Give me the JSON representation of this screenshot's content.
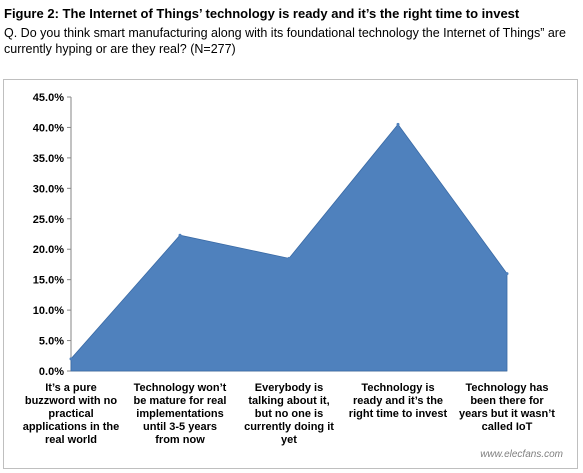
{
  "header": {
    "figure_title": "Figure 2: The Internet of Things’ technology is ready and it’s the right time to invest",
    "question": "Q. Do you think smart manufacturing along with its foundational technology the Internet of Things” are currently hyping or are they real? (N=277)"
  },
  "chart_data": {
    "type": "area",
    "title": "",
    "xlabel": "",
    "ylabel": "",
    "ylim": [
      0,
      45
    ],
    "yticks": [
      "0.0%",
      "5.0%",
      "10.0%",
      "15.0%",
      "20.0%",
      "25.0%",
      "30.0%",
      "35.0%",
      "40.0%",
      "45.0%"
    ],
    "grid": false,
    "legend": "none",
    "color": "#4f81bd",
    "categories": [
      "It’s a pure buzzword with no practical applications in the real world",
      "Technology won’t be mature for real implementations until 3-5 years from now",
      "Everybody is talking about it, but no one is currently doing it yet",
      "Technology is ready and it’s the right time to invest",
      "Technology has been there for years but it wasn’t called IoT"
    ],
    "category_lines": [
      [
        "It’s a pure",
        "buzzword with no",
        "practical",
        "applications in the",
        "real world"
      ],
      [
        "Technology won’t",
        "be mature for real",
        "implementations",
        "until 3-5 years",
        "from now"
      ],
      [
        "Everybody is",
        "talking about it,",
        "but no one is",
        "currently doing it",
        "yet"
      ],
      [
        "Technology is",
        "ready and it’s the",
        "right time to invest"
      ],
      [
        "Technology has",
        "been there for",
        "years but it wasn’t",
        "called IoT"
      ]
    ],
    "values": [
      2.0,
      22.3,
      18.5,
      40.5,
      16.0
    ]
  },
  "watermark": "www.elecfans.com"
}
